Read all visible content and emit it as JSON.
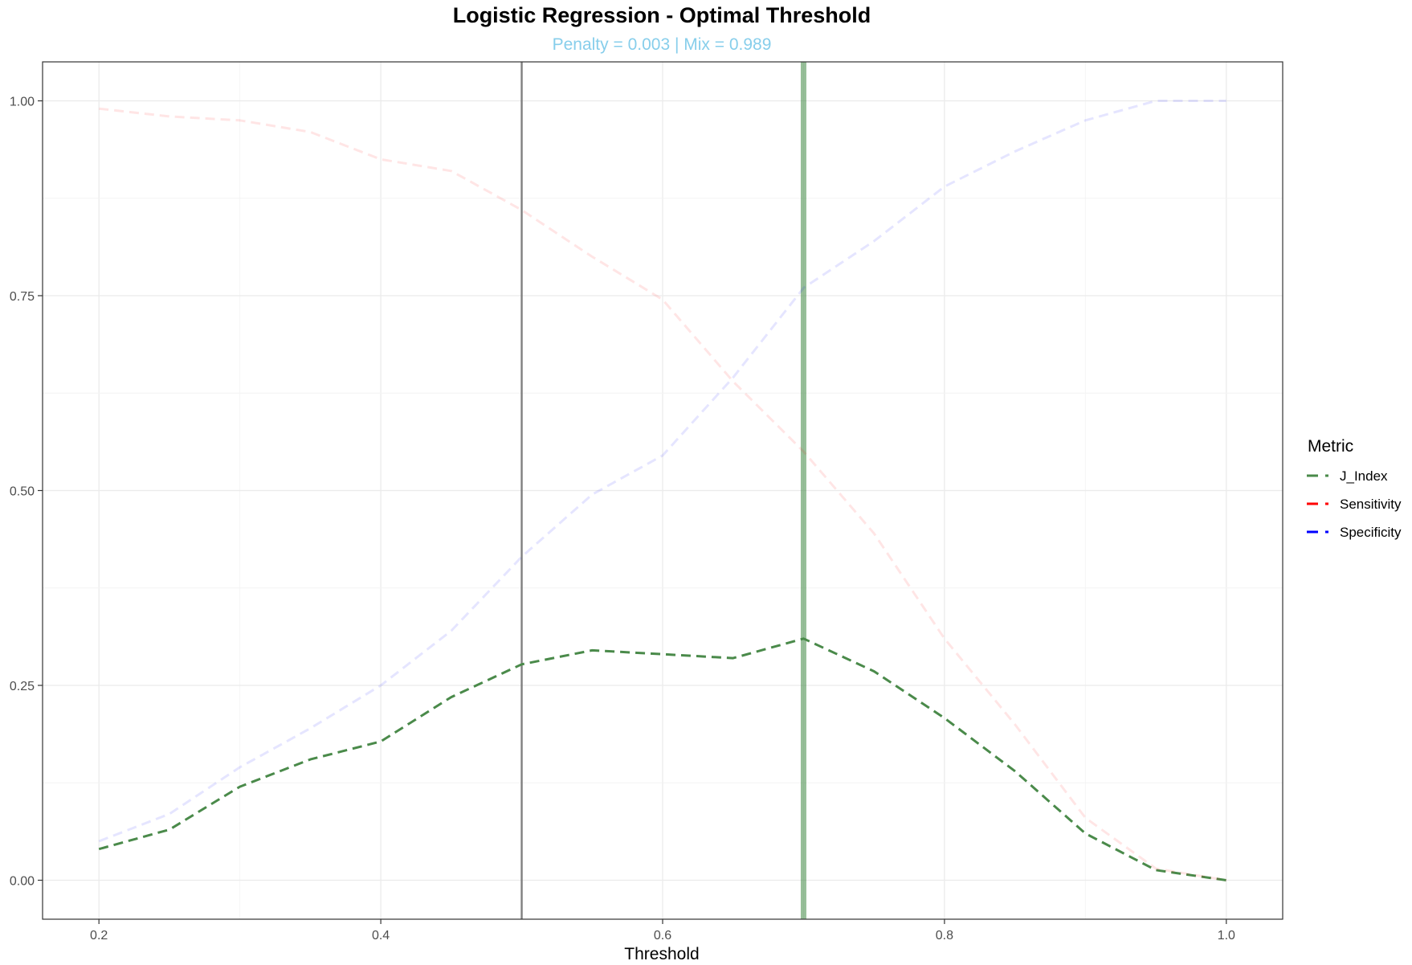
{
  "chart_data": {
    "type": "line",
    "title": "Logistic Regression - Optimal Threshold",
    "subtitle": "Penalty = 0.003 | Mix = 0.989",
    "xlabel": "Threshold",
    "ylabel": "",
    "xlim": [
      0.16,
      1.04
    ],
    "ylim": [
      -0.05,
      1.05
    ],
    "x_ticks": [
      0.2,
      0.4,
      0.6,
      0.8,
      1.0
    ],
    "x_tick_labels": [
      "0.2",
      "0.4",
      "0.6",
      "0.8",
      "1.0"
    ],
    "y_ticks": [
      0.0,
      0.25,
      0.5,
      0.75,
      1.0
    ],
    "y_tick_labels": [
      "0.00",
      "0.25",
      "0.50",
      "0.75",
      "1.00"
    ],
    "grid": true,
    "legend": {
      "title": "Metric",
      "position": "right"
    },
    "x": [
      0.2,
      0.25,
      0.3,
      0.35,
      0.4,
      0.45,
      0.5,
      0.55,
      0.6,
      0.65,
      0.7,
      0.75,
      0.8,
      0.85,
      0.9,
      0.95,
      1.0
    ],
    "series": [
      {
        "name": "J_Index",
        "color": "#4a8a4a",
        "opacity": 1.0,
        "values": [
          0.04,
          0.065,
          0.12,
          0.155,
          0.178,
          0.235,
          0.277,
          0.295,
          0.29,
          0.285,
          0.31,
          0.268,
          0.208,
          0.14,
          0.06,
          0.013,
          0.0
        ]
      },
      {
        "name": "Sensitivity",
        "color": "#ff0000",
        "opacity": 0.1,
        "values": [
          0.99,
          0.98,
          0.975,
          0.96,
          0.925,
          0.91,
          0.86,
          0.8,
          0.745,
          0.64,
          0.55,
          0.445,
          0.31,
          0.2,
          0.08,
          0.015,
          0.0
        ]
      },
      {
        "name": "Specificity",
        "color": "#0000ff",
        "opacity": 0.1,
        "values": [
          0.05,
          0.085,
          0.145,
          0.195,
          0.25,
          0.32,
          0.415,
          0.495,
          0.545,
          0.645,
          0.76,
          0.82,
          0.89,
          0.935,
          0.975,
          1.0,
          1.0
        ]
      }
    ],
    "reference_lines": [
      {
        "x": 0.5,
        "color": "#7f7f7f",
        "opacity": 1.0
      },
      {
        "x": 0.7,
        "color": "#2e7d32",
        "opacity": 0.5
      }
    ],
    "title_color": "#000000",
    "subtitle_color": "#87ceeb"
  }
}
